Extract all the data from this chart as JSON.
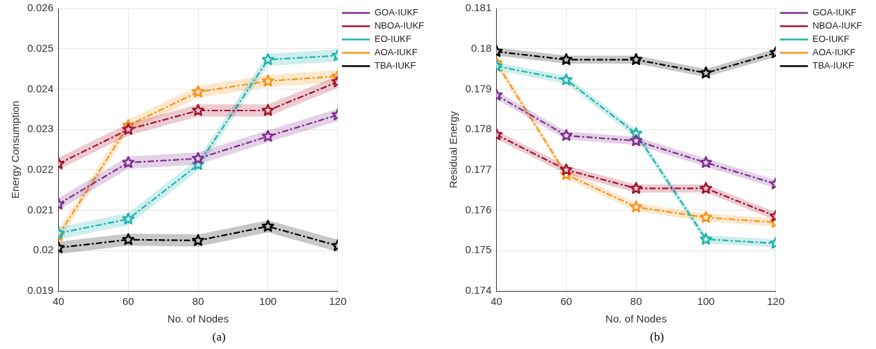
{
  "chart_data": [
    {
      "type": "line",
      "xlabel": "No. of Nodes",
      "ylabel": "Energy Consumption",
      "x": [
        40,
        60,
        80,
        100,
        120
      ],
      "xlim": [
        40,
        120
      ],
      "xticks": [
        40,
        60,
        80,
        100,
        120
      ],
      "ylim": [
        0.019,
        0.026
      ],
      "yticks": [
        0.019,
        0.02,
        0.021,
        0.022,
        0.023,
        0.024,
        0.025,
        0.026
      ],
      "grid": true,
      "legend": "top right",
      "marker": "star",
      "line_style": "dashed",
      "annotations": [
        "(a)"
      ],
      "series": [
        {
          "name": "GOA-IUKF",
          "color": "#7e2f8e",
          "values": [
            0.02115,
            0.02218,
            0.02228,
            0.02283,
            0.02336
          ],
          "lower": [
            0.021,
            0.02203,
            0.02213,
            0.02268,
            0.02321
          ],
          "upper": [
            0.0213,
            0.02233,
            0.02243,
            0.02298,
            0.02351
          ]
        },
        {
          "name": "NBOA-IUKF",
          "color": "#a2142f",
          "values": [
            0.02215,
            0.023,
            0.02347,
            0.02347,
            0.02418
          ],
          "lower": [
            0.022,
            0.02285,
            0.02332,
            0.02332,
            0.02403
          ],
          "upper": [
            0.0223,
            0.02315,
            0.02362,
            0.02362,
            0.02433
          ]
        },
        {
          "name": "EO-IUKF",
          "color": "#1fb2ad",
          "values": [
            0.02043,
            0.02078,
            0.02213,
            0.02473,
            0.02483
          ],
          "lower": [
            0.02028,
            0.02063,
            0.02198,
            0.02458,
            0.02468
          ],
          "upper": [
            0.02058,
            0.02093,
            0.02228,
            0.02488,
            0.02498
          ]
        },
        {
          "name": "AOA-IUKF",
          "color": "#f7941d",
          "values": [
            0.02037,
            0.0231,
            0.02393,
            0.0242,
            0.02432
          ],
          "lower": [
            0.02022,
            0.02295,
            0.02378,
            0.02405,
            0.02417
          ],
          "upper": [
            0.02052,
            0.02325,
            0.02408,
            0.02435,
            0.02447
          ]
        },
        {
          "name": "TBA-IUKF",
          "color": "#000000",
          "values": [
            0.02007,
            0.02027,
            0.02025,
            0.0206,
            0.02012
          ],
          "lower": [
            0.01992,
            0.02012,
            0.0201,
            0.02045,
            0.01997
          ],
          "upper": [
            0.02022,
            0.02042,
            0.0204,
            0.02075,
            0.02027
          ]
        }
      ]
    },
    {
      "type": "line",
      "xlabel": "No. of Nodes",
      "ylabel": "Residual Energy",
      "x": [
        40,
        60,
        80,
        100,
        120
      ],
      "xlim": [
        40,
        120
      ],
      "xticks": [
        40,
        60,
        80,
        100,
        120
      ],
      "ylim": [
        0.174,
        0.181
      ],
      "yticks": [
        0.174,
        0.175,
        0.176,
        0.177,
        0.178,
        0.179,
        0.18,
        0.181
      ],
      "grid": true,
      "legend": "top right",
      "marker": "star",
      "line_style": "dashed",
      "annotations": [
        "(b)"
      ],
      "series": [
        {
          "name": "GOA-IUKF",
          "color": "#7e2f8e",
          "values": [
            0.17885,
            0.17785,
            0.17772,
            0.17718,
            0.17665
          ],
          "lower": [
            0.17875,
            0.17775,
            0.17762,
            0.17708,
            0.17655
          ],
          "upper": [
            0.17895,
            0.17795,
            0.17782,
            0.17728,
            0.17675
          ]
        },
        {
          "name": "NBOA-IUKF",
          "color": "#a2142f",
          "values": [
            0.17787,
            0.177,
            0.17654,
            0.17654,
            0.17585
          ],
          "lower": [
            0.17777,
            0.1769,
            0.17644,
            0.17644,
            0.17575
          ],
          "upper": [
            0.17797,
            0.1771,
            0.17664,
            0.17664,
            0.17595
          ]
        },
        {
          "name": "EO-IUKF",
          "color": "#1fb2ad",
          "values": [
            0.17957,
            0.17923,
            0.1779,
            0.17528,
            0.17518
          ],
          "lower": [
            0.17947,
            0.17913,
            0.1778,
            0.17518,
            0.17508
          ],
          "upper": [
            0.17967,
            0.17933,
            0.178,
            0.17538,
            0.17528
          ]
        },
        {
          "name": "AOA-IUKF",
          "color": "#f7941d",
          "values": [
            0.17965,
            0.17688,
            0.17608,
            0.17582,
            0.1757
          ],
          "lower": [
            0.17955,
            0.17678,
            0.17598,
            0.17572,
            0.1756
          ],
          "upper": [
            0.17975,
            0.17698,
            0.17618,
            0.17592,
            0.1758
          ]
        },
        {
          "name": "TBA-IUKF",
          "color": "#000000",
          "values": [
            0.17993,
            0.17973,
            0.17973,
            0.1794,
            0.1799
          ],
          "lower": [
            0.17983,
            0.17963,
            0.17963,
            0.1793,
            0.1798
          ],
          "upper": [
            0.18003,
            0.17983,
            0.17983,
            0.1795,
            0.18
          ]
        }
      ]
    }
  ]
}
